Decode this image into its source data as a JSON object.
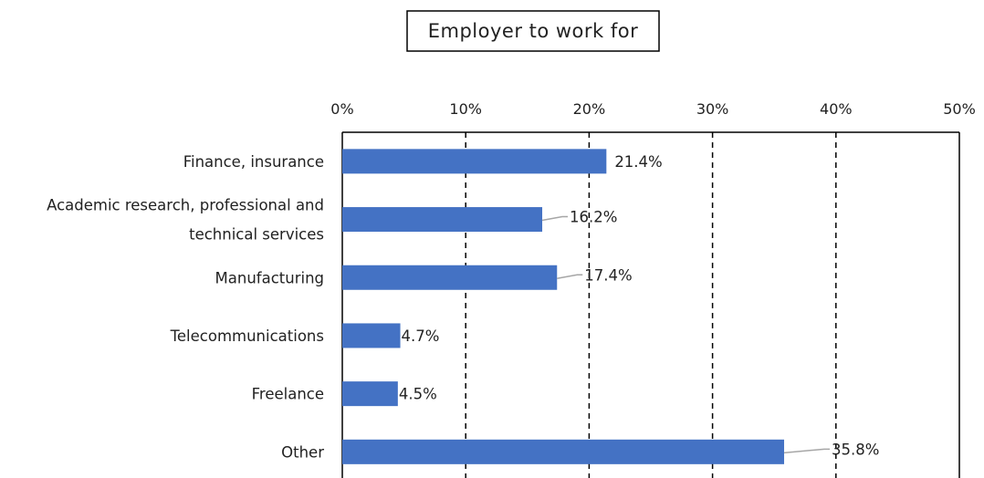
{
  "chart_data": {
    "type": "bar",
    "orientation": "horizontal",
    "title": "Employer to work for",
    "categories": [
      [
        "Finance, insurance"
      ],
      [
        "Academic research, professional and",
        "technical services"
      ],
      [
        "Manufacturing"
      ],
      [
        "Telecommunications"
      ],
      [
        "Freelance"
      ],
      [
        "Other"
      ]
    ],
    "values": [
      21.4,
      16.2,
      17.4,
      4.7,
      4.5,
      35.8
    ],
    "data_labels": [
      "21.4%",
      "16.2%",
      "17.4%",
      "4.7%",
      "4.5%",
      "35.8%"
    ],
    "xlim": [
      0,
      50
    ],
    "xticks": [
      0,
      10,
      20,
      30,
      40,
      50
    ],
    "xtick_labels": [
      "0%",
      "10%",
      "20%",
      "30%",
      "40%",
      "50%"
    ],
    "xaxis_position": "top",
    "grid": "vertical dashed",
    "legend": "none",
    "bar_color": "#4472C4",
    "leader_line_color": "#A6A6A6"
  }
}
